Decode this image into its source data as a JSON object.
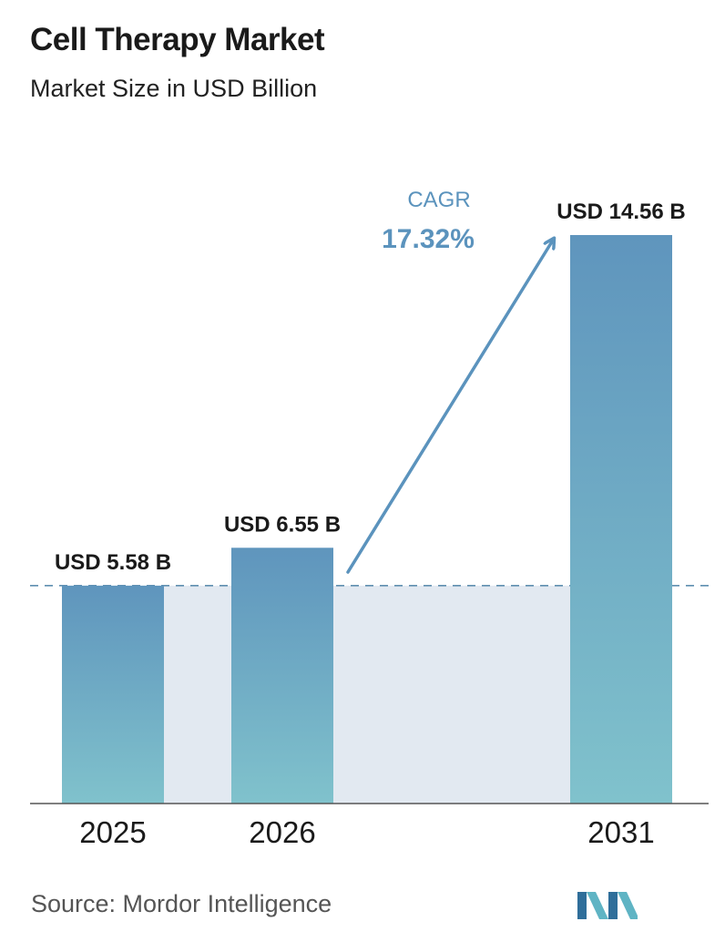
{
  "header": {
    "title": "Cell Therapy Market",
    "subtitle": "Market Size in USD Billion"
  },
  "chart_data": {
    "type": "bar",
    "title": "Cell Therapy Market",
    "subtitle": "Market Size in USD Billion",
    "categories": [
      "2025",
      "2026",
      "2031"
    ],
    "values": [
      5.58,
      6.55,
      14.56
    ],
    "data_labels": [
      "USD 5.58 B",
      "USD 6.55 B",
      "USD 14.56 B"
    ],
    "ylim": [
      0,
      15.2
    ],
    "grid": false,
    "reference_line": {
      "value": 5.58,
      "style": "dashed"
    },
    "annotation": {
      "label": "CAGR",
      "value": "17.32%"
    },
    "colors": {
      "bar_top": "#5f95bd",
      "bar_bottom": "#80c2cc",
      "band": "#e2e9f1",
      "accent": "#5b93bd",
      "axis": "#555555"
    }
  },
  "footer": {
    "source": "Source:  Mordor Intelligence",
    "logo_icon": "mordor-intelligence-logo-icon"
  }
}
